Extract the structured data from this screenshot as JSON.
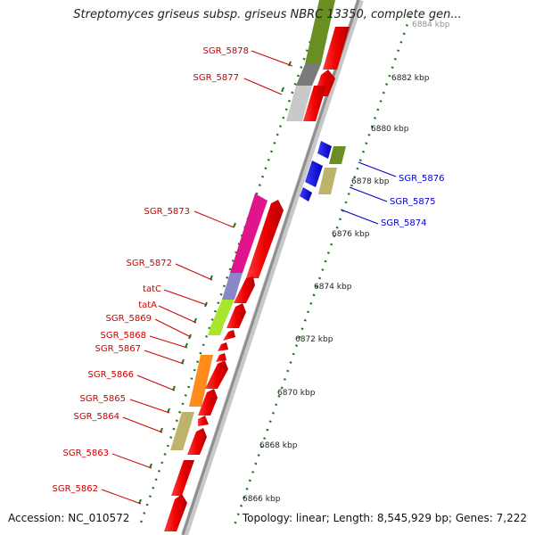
{
  "title": "Streptomyces griseus subsp. griseus NBRC 13350, complete gen...",
  "footer": {
    "accession": "Accession: NC_010572",
    "topology": "Topology: linear; Length: 8,545,929 bp; Genes: 7,222"
  },
  "colors": {
    "forward_label": "#cc0000",
    "reverse_label": "#0000cc",
    "backbone": "#9a9a9a",
    "tick": "#1a7a1a"
  },
  "scale_labels": [
    "6884 kbp",
    "6882 kbp",
    "6880 kbp",
    "6878 kbp",
    "6876 kbp",
    "6874 kbp",
    "6872 kbp",
    "6870 kbp",
    "6868 kbp",
    "6866 kbp"
  ],
  "gene_labels": [
    {
      "text": "SGR_5878",
      "strand": "forward"
    },
    {
      "text": "SGR_5877",
      "strand": "forward"
    },
    {
      "text": "SGR_5876",
      "strand": "reverse"
    },
    {
      "text": "SGR_5875",
      "strand": "reverse"
    },
    {
      "text": "SGR_5874",
      "strand": "reverse"
    },
    {
      "text": "SGR_5873",
      "strand": "forward"
    },
    {
      "text": "SGR_5872",
      "strand": "forward"
    },
    {
      "text": "tatC",
      "strand": "forward"
    },
    {
      "text": "tatA",
      "strand": "forward"
    },
    {
      "text": "SGR_5869",
      "strand": "forward"
    },
    {
      "text": "SGR_5868",
      "strand": "forward"
    },
    {
      "text": "SGR_5867",
      "strand": "forward"
    },
    {
      "text": "SGR_5866",
      "strand": "forward"
    },
    {
      "text": "SGR_5865",
      "strand": "forward"
    },
    {
      "text": "SGR_5864",
      "strand": "forward"
    },
    {
      "text": "SGR_5863",
      "strand": "forward"
    },
    {
      "text": "SGR_5862",
      "strand": "forward"
    }
  ]
}
